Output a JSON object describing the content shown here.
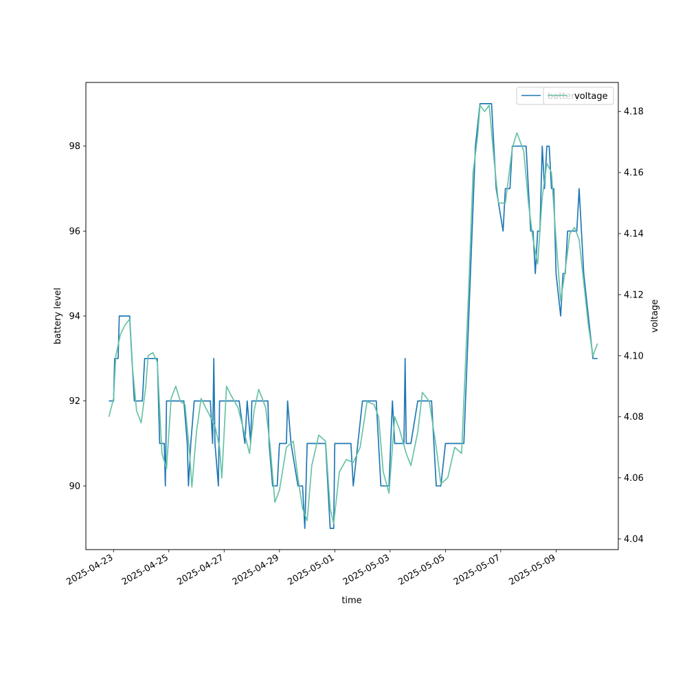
{
  "chart_data": {
    "type": "line",
    "xlabel": "time",
    "ylabel_left": "battery level",
    "ylabel_right": "voltage",
    "x_range": [
      "2025-04-22 00:00",
      "2025-05-11 06:00"
    ],
    "y_left_range": [
      88.5,
      99.5
    ],
    "y_right_range": [
      4.0365,
      4.1895
    ],
    "x_ticks": [
      "2025-04-23",
      "2025-04-25",
      "2025-04-27",
      "2025-04-29",
      "2025-05-01",
      "2025-05-03",
      "2025-05-05",
      "2025-05-07",
      "2025-05-09"
    ],
    "y_left_ticks": [
      "90",
      "92",
      "94",
      "96",
      "98"
    ],
    "y_right_ticks": [
      "4.04",
      "4.06",
      "4.08",
      "4.10",
      "4.12",
      "4.14",
      "4.16",
      "4.18"
    ],
    "grid": false,
    "legend_placement": "top-right",
    "legend_entries": [
      "battery",
      "voltage"
    ],
    "series": [
      {
        "name": "battery",
        "axis": "left",
        "color": "#1f77b4",
        "points": [
          [
            "2025-04-22 20:00",
            92
          ],
          [
            "2025-04-23 00:00",
            92
          ],
          [
            "2025-04-23 01:00",
            93
          ],
          [
            "2025-04-23 04:00",
            93
          ],
          [
            "2025-04-23 05:00",
            94
          ],
          [
            "2025-04-23 14:00",
            94
          ],
          [
            "2025-04-23 16:00",
            93
          ],
          [
            "2025-04-23 18:00",
            92
          ],
          [
            "2025-04-24 01:00",
            92
          ],
          [
            "2025-04-24 03:00",
            93
          ],
          [
            "2025-04-24 14:00",
            93
          ],
          [
            "2025-04-24 16:00",
            91
          ],
          [
            "2025-04-24 20:00",
            91
          ],
          [
            "2025-04-24 21:00",
            90
          ],
          [
            "2025-04-24 22:00",
            92
          ],
          [
            "2025-04-25 13:00",
            92
          ],
          [
            "2025-04-25 16:00",
            91
          ],
          [
            "2025-04-25 17:00",
            90
          ],
          [
            "2025-04-25 19:00",
            91
          ],
          [
            "2025-04-25 22:00",
            92
          ],
          [
            "2025-04-26 12:00",
            92
          ],
          [
            "2025-04-26 14:00",
            91
          ],
          [
            "2025-04-26 15:00",
            93
          ],
          [
            "2025-04-26 16:00",
            91
          ],
          [
            "2025-04-26 19:00",
            90
          ],
          [
            "2025-04-26 20:00",
            92
          ],
          [
            "2025-04-27 13:00",
            92
          ],
          [
            "2025-04-27 18:00",
            91
          ],
          [
            "2025-04-27 20:00",
            92
          ],
          [
            "2025-04-27 23:00",
            91
          ],
          [
            "2025-04-28 00:00",
            92
          ],
          [
            "2025-04-28 14:00",
            92
          ],
          [
            "2025-04-28 15:00",
            91
          ],
          [
            "2025-04-28 18:00",
            90
          ],
          [
            "2025-04-28 22:00",
            90
          ],
          [
            "2025-04-29 00:00",
            91
          ],
          [
            "2025-04-29 06:00",
            91
          ],
          [
            "2025-04-29 07:00",
            92
          ],
          [
            "2025-04-29 10:00",
            91
          ],
          [
            "2025-04-29 16:00",
            90
          ],
          [
            "2025-04-29 20:00",
            90
          ],
          [
            "2025-04-29 22:00",
            89
          ],
          [
            "2025-04-30 00:00",
            91
          ],
          [
            "2025-04-30 16:00",
            91
          ],
          [
            "2025-04-30 20:00",
            89
          ],
          [
            "2025-04-30 23:00",
            89
          ],
          [
            "2025-05-01 00:00",
            91
          ],
          [
            "2025-05-01 14:00",
            91
          ],
          [
            "2025-05-01 16:00",
            90
          ],
          [
            "2025-05-01 20:00",
            91
          ],
          [
            "2025-05-02 00:00",
            92
          ],
          [
            "2025-05-02 12:00",
            92
          ],
          [
            "2025-05-02 16:00",
            90
          ],
          [
            "2025-05-02 23:00",
            90
          ],
          [
            "2025-05-03 02:00",
            92
          ],
          [
            "2025-05-03 04:00",
            91
          ],
          [
            "2025-05-03 12:00",
            91
          ],
          [
            "2025-05-03 13:00",
            93
          ],
          [
            "2025-05-03 14:00",
            91
          ],
          [
            "2025-05-03 18:00",
            91
          ],
          [
            "2025-05-04 00:00",
            92
          ],
          [
            "2025-05-04 12:00",
            92
          ],
          [
            "2025-05-04 16:00",
            90
          ],
          [
            "2025-05-04 20:00",
            90
          ],
          [
            "2025-05-05 00:00",
            91
          ],
          [
            "2025-05-05 16:00",
            91
          ],
          [
            "2025-05-06 02:00",
            98
          ],
          [
            "2025-05-06 06:00",
            99
          ],
          [
            "2025-05-06 16:00",
            99
          ],
          [
            "2025-05-06 20:00",
            97
          ],
          [
            "2025-05-07 02:00",
            96
          ],
          [
            "2025-05-07 04:00",
            97
          ],
          [
            "2025-05-07 08:00",
            97
          ],
          [
            "2025-05-07 10:00",
            98
          ],
          [
            "2025-05-07 22:00",
            98
          ],
          [
            "2025-05-08 02:00",
            96
          ],
          [
            "2025-05-08 04:00",
            96
          ],
          [
            "2025-05-08 06:00",
            95
          ],
          [
            "2025-05-08 08:00",
            96
          ],
          [
            "2025-05-08 10:00",
            96
          ],
          [
            "2025-05-08 12:00",
            98
          ],
          [
            "2025-05-08 14:00",
            97
          ],
          [
            "2025-05-08 16:00",
            98
          ],
          [
            "2025-05-08 18:00",
            98
          ],
          [
            "2025-05-08 20:00",
            97
          ],
          [
            "2025-05-08 22:00",
            97
          ],
          [
            "2025-05-09 00:00",
            95
          ],
          [
            "2025-05-09 04:00",
            94
          ],
          [
            "2025-05-09 06:00",
            95
          ],
          [
            "2025-05-09 08:00",
            95
          ],
          [
            "2025-05-09 10:00",
            96
          ],
          [
            "2025-05-09 18:00",
            96
          ],
          [
            "2025-05-09 20:00",
            97
          ],
          [
            "2025-05-10 00:00",
            95
          ],
          [
            "2025-05-10 04:00",
            94
          ],
          [
            "2025-05-10 08:00",
            93
          ],
          [
            "2025-05-10 12:00",
            93
          ]
        ]
      },
      {
        "name": "voltage",
        "axis": "right",
        "color": "#66c2a5",
        "points": [
          [
            "2025-04-22 20:00",
            4.08
          ],
          [
            "2025-04-23 00:00",
            4.086
          ],
          [
            "2025-04-23 02:00",
            4.1
          ],
          [
            "2025-04-23 06:00",
            4.107
          ],
          [
            "2025-04-23 10:00",
            4.11
          ],
          [
            "2025-04-23 14:00",
            4.112
          ],
          [
            "2025-04-23 16:00",
            4.098
          ],
          [
            "2025-04-23 20:00",
            4.082
          ],
          [
            "2025-04-24 00:00",
            4.078
          ],
          [
            "2025-04-24 04:00",
            4.09
          ],
          [
            "2025-04-24 06:00",
            4.1
          ],
          [
            "2025-04-24 10:00",
            4.101
          ],
          [
            "2025-04-24 14:00",
            4.098
          ],
          [
            "2025-04-24 18:00",
            4.068
          ],
          [
            "2025-04-24 22:00",
            4.063
          ],
          [
            "2025-04-25 02:00",
            4.086
          ],
          [
            "2025-04-25 06:00",
            4.09
          ],
          [
            "2025-04-25 10:00",
            4.085
          ],
          [
            "2025-04-25 14:00",
            4.084
          ],
          [
            "2025-04-25 18:00",
            4.068
          ],
          [
            "2025-04-25 20:00",
            4.057
          ],
          [
            "2025-04-26 00:00",
            4.075
          ],
          [
            "2025-04-26 04:00",
            4.086
          ],
          [
            "2025-04-26 12:00",
            4.08
          ],
          [
            "2025-04-26 16:00",
            4.077
          ],
          [
            "2025-04-26 20:00",
            4.07
          ],
          [
            "2025-04-26 22:00",
            4.06
          ],
          [
            "2025-04-27 02:00",
            4.09
          ],
          [
            "2025-04-27 06:00",
            4.087
          ],
          [
            "2025-04-27 12:00",
            4.083
          ],
          [
            "2025-04-27 18:00",
            4.074
          ],
          [
            "2025-04-27 22:00",
            4.068
          ],
          [
            "2025-04-28 02:00",
            4.082
          ],
          [
            "2025-04-28 06:00",
            4.089
          ],
          [
            "2025-04-28 12:00",
            4.083
          ],
          [
            "2025-04-28 16:00",
            4.07
          ],
          [
            "2025-04-28 20:00",
            4.052
          ],
          [
            "2025-04-29 00:00",
            4.056
          ],
          [
            "2025-04-29 06:00",
            4.07
          ],
          [
            "2025-04-29 12:00",
            4.072
          ],
          [
            "2025-04-29 16:00",
            4.06
          ],
          [
            "2025-04-29 20:00",
            4.05
          ],
          [
            "2025-04-30 00:00",
            4.046
          ],
          [
            "2025-04-30 04:00",
            4.064
          ],
          [
            "2025-04-30 10:00",
            4.074
          ],
          [
            "2025-04-30 16:00",
            4.072
          ],
          [
            "2025-04-30 20:00",
            4.05
          ],
          [
            "2025-04-30 23:00",
            4.045
          ],
          [
            "2025-05-01 04:00",
            4.062
          ],
          [
            "2025-05-01 10:00",
            4.066
          ],
          [
            "2025-05-01 16:00",
            4.065
          ],
          [
            "2025-05-01 22:00",
            4.07
          ],
          [
            "2025-05-02 04:00",
            4.085
          ],
          [
            "2025-05-02 10:00",
            4.084
          ],
          [
            "2025-05-02 14:00",
            4.08
          ],
          [
            "2025-05-02 18:00",
            4.062
          ],
          [
            "2025-05-02 23:00",
            4.055
          ],
          [
            "2025-05-03 04:00",
            4.08
          ],
          [
            "2025-05-03 08:00",
            4.076
          ],
          [
            "2025-05-03 14:00",
            4.068
          ],
          [
            "2025-05-03 18:00",
            4.064
          ],
          [
            "2025-05-04 00:00",
            4.075
          ],
          [
            "2025-05-04 04:00",
            4.088
          ],
          [
            "2025-05-04 10:00",
            4.085
          ],
          [
            "2025-05-04 16:00",
            4.07
          ],
          [
            "2025-05-04 20:00",
            4.058
          ],
          [
            "2025-05-05 02:00",
            4.06
          ],
          [
            "2025-05-05 08:00",
            4.07
          ],
          [
            "2025-05-05 14:00",
            4.068
          ],
          [
            "2025-05-05 20:00",
            4.12
          ],
          [
            "2025-05-06 00:00",
            4.16
          ],
          [
            "2025-05-06 04:00",
            4.172
          ],
          [
            "2025-05-06 06:00",
            4.182
          ],
          [
            "2025-05-06 10:00",
            4.18
          ],
          [
            "2025-05-06 14:00",
            4.182
          ],
          [
            "2025-05-06 18:00",
            4.165
          ],
          [
            "2025-05-06 22:00",
            4.15
          ],
          [
            "2025-05-07 04:00",
            4.15
          ],
          [
            "2025-05-07 10:00",
            4.168
          ],
          [
            "2025-05-07 14:00",
            4.173
          ],
          [
            "2025-05-07 20:00",
            4.167
          ],
          [
            "2025-05-08 00:00",
            4.15
          ],
          [
            "2025-05-08 04:00",
            4.138
          ],
          [
            "2025-05-08 08:00",
            4.13
          ],
          [
            "2025-05-08 12:00",
            4.152
          ],
          [
            "2025-05-08 16:00",
            4.163
          ],
          [
            "2025-05-08 20:00",
            4.16
          ],
          [
            "2025-05-09 00:00",
            4.138
          ],
          [
            "2025-05-09 04:00",
            4.118
          ],
          [
            "2025-05-09 08:00",
            4.128
          ],
          [
            "2025-05-09 12:00",
            4.14
          ],
          [
            "2025-05-09 16:00",
            4.142
          ],
          [
            "2025-05-09 20:00",
            4.138
          ],
          [
            "2025-05-10 00:00",
            4.124
          ],
          [
            "2025-05-10 04:00",
            4.11
          ],
          [
            "2025-05-10 08:00",
            4.1
          ],
          [
            "2025-05-10 12:00",
            4.104
          ]
        ]
      }
    ]
  }
}
